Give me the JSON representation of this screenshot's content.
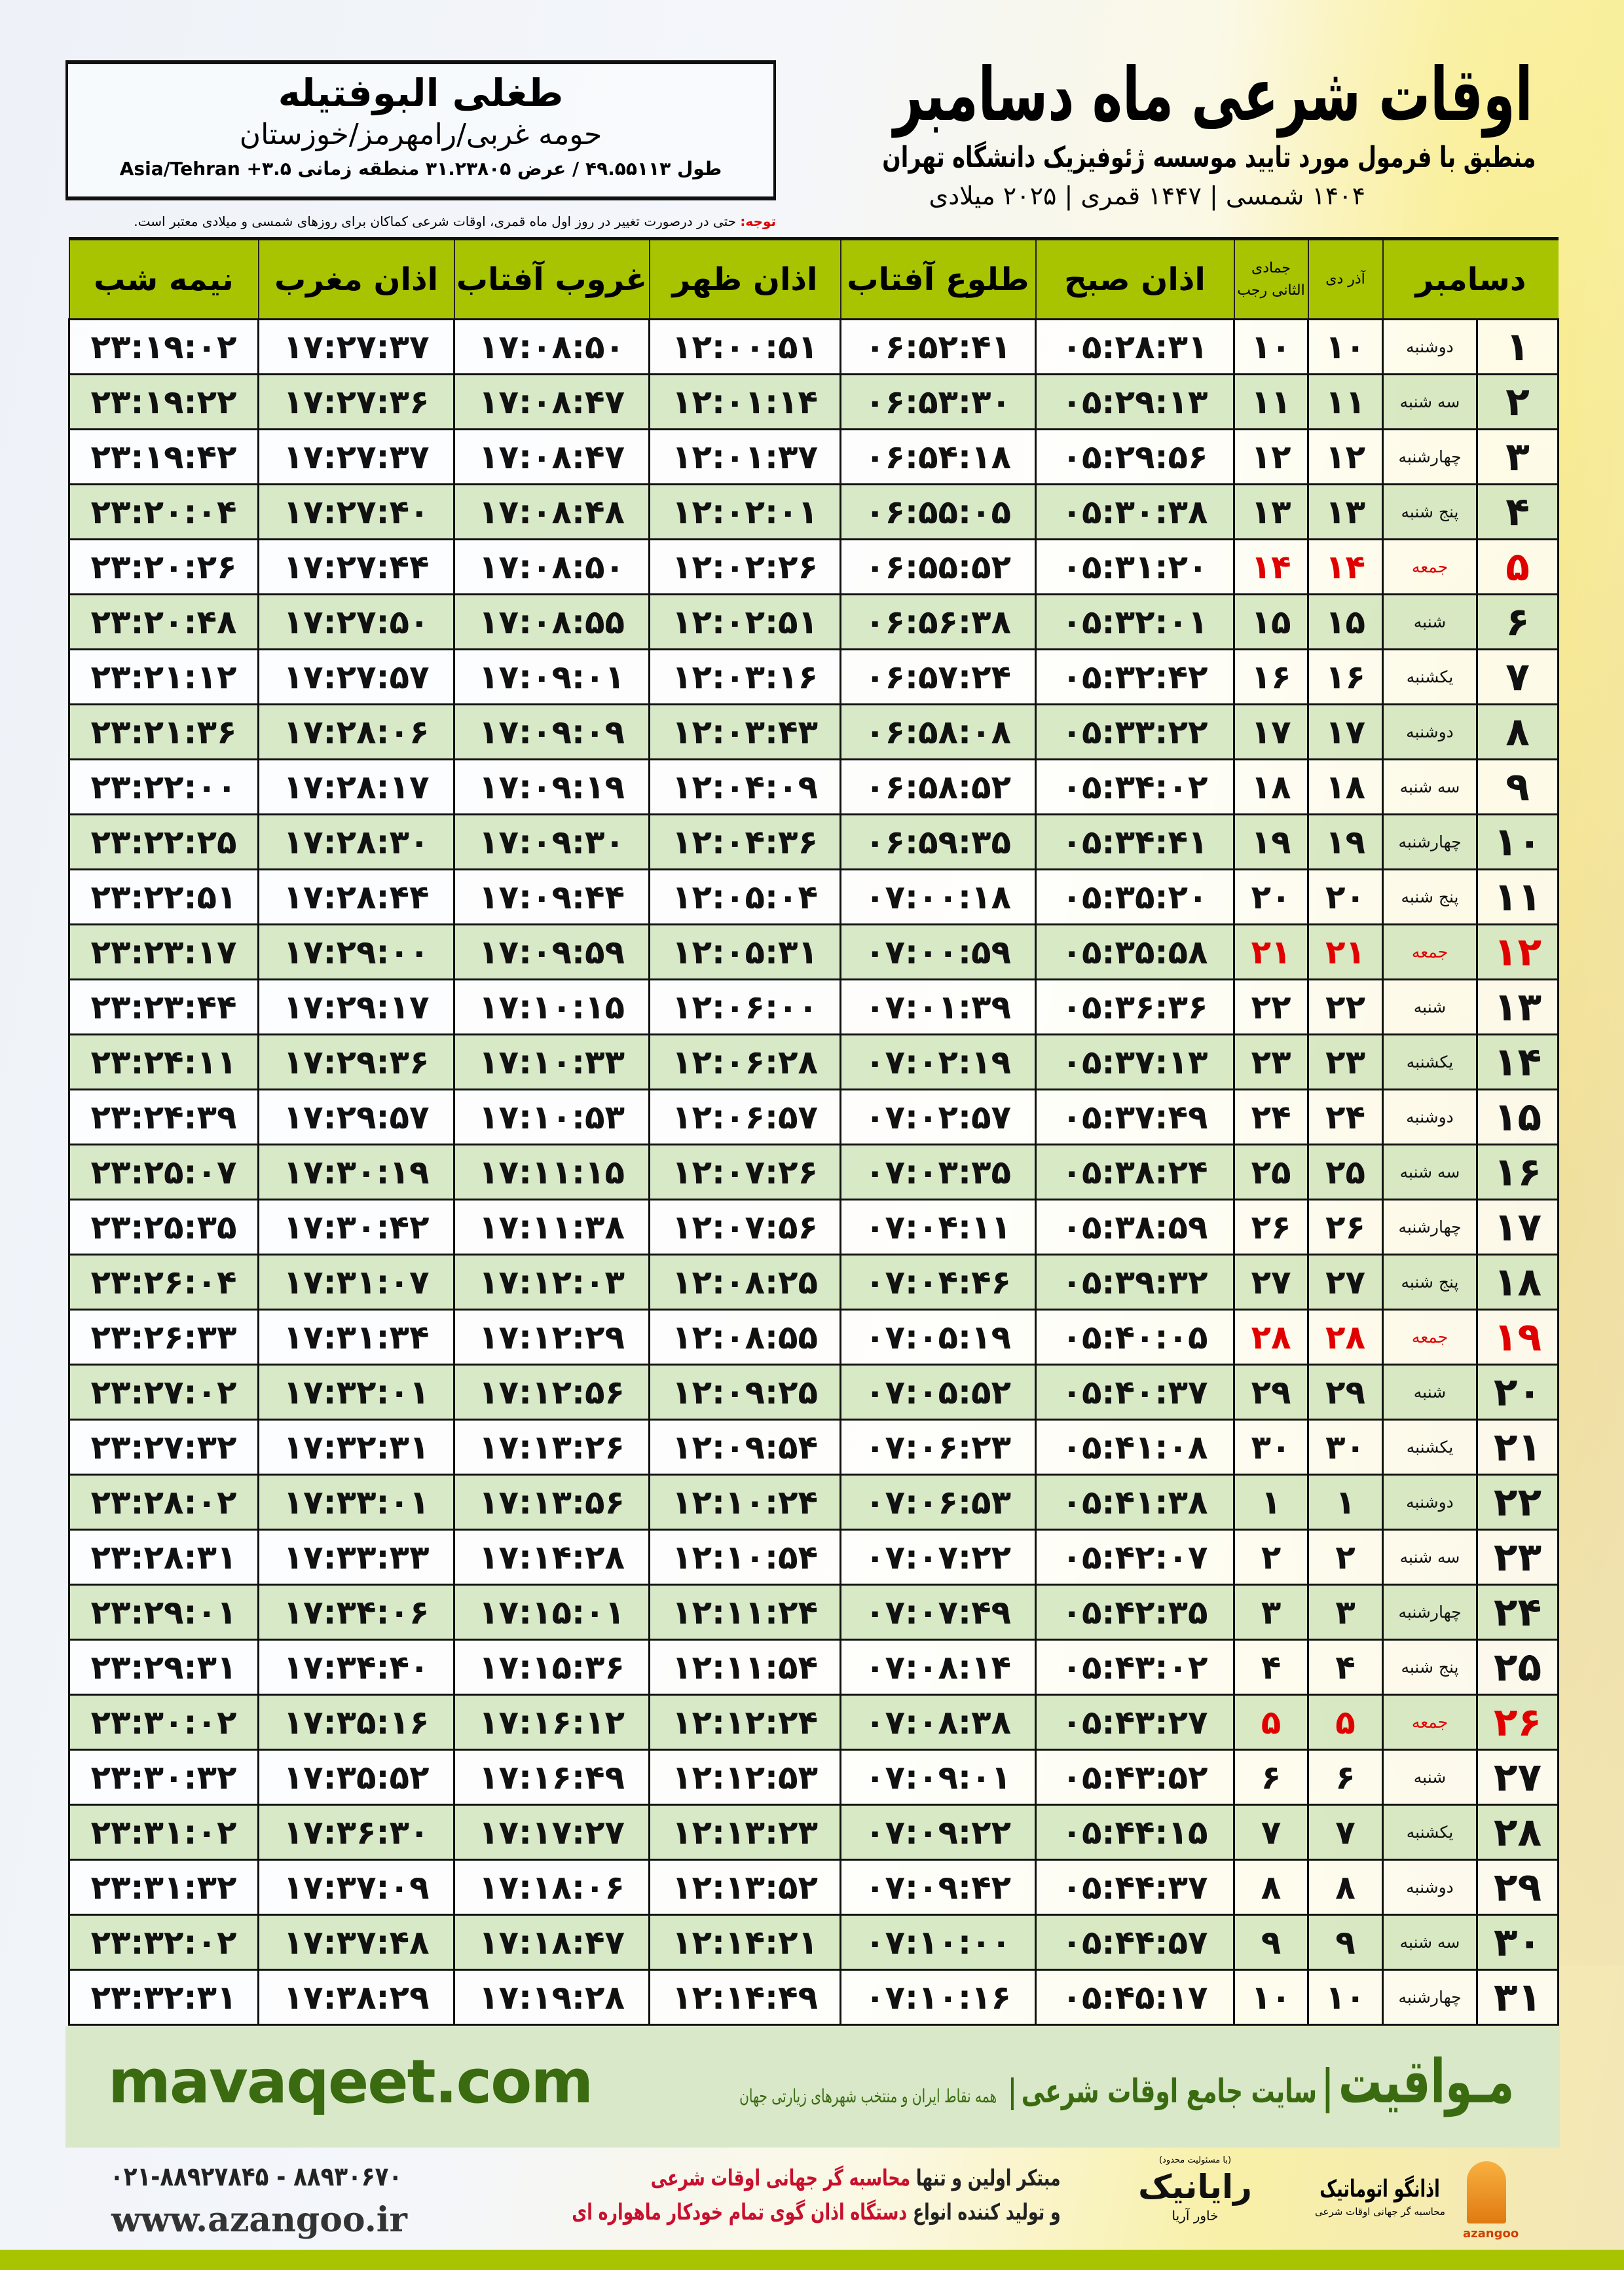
{
  "header": {
    "title": "اوقات شرعی ماه دسامبر",
    "subtitle": "منطبق با فرمول مورد تایید موسسه ژئوفیزیک دانشگاه تهران",
    "date_line": "۱۴۰۴ شمسی | ۱۴۴۷ قمری | ۲۰۲۵ میلادی"
  },
  "location": {
    "city": "طغلی البوفتیله",
    "region": "حومه غربی/رامهرمز/خوزستان",
    "coords": "طول ۴۹.۵۵۱۱۳ / عرض ۳۱.۲۳۸۰۵ منطقه زمانی Asia/Tehran +۳.۵"
  },
  "note": {
    "label": "توجه:",
    "text": " حتی در درصورت تغییر در روز اول ماه قمری، اوقات شرعی کماکان برای روزهای شمسی و میلادی معتبر است."
  },
  "table": {
    "headers": {
      "month": "دسامبر",
      "persian_months": "آذر  دی",
      "hijri_months": "جمادی الثانی  رجب",
      "sobh": "اذان صبح",
      "tolu": "طلوع آفتاب",
      "zohr": "اذان ظهر",
      "ghorub": "غروب آفتاب",
      "maghreb": "اذان مغرب",
      "nimeshab": "نیمه شب"
    },
    "rows": [
      [
        "۱",
        "دوشنبه",
        "۱۰",
        "۱۰",
        "۰۵:۲۸:۳۱",
        "۰۶:۵۲:۴۱",
        "۱۲:۰۰:۵۱",
        "۱۷:۰۸:۵۰",
        "۱۷:۲۷:۳۷",
        "۲۳:۱۹:۰۲"
      ],
      [
        "۲",
        "سه شنبه",
        "۱۱",
        "۱۱",
        "۰۵:۲۹:۱۳",
        "۰۶:۵۳:۳۰",
        "۱۲:۰۱:۱۴",
        "۱۷:۰۸:۴۷",
        "۱۷:۲۷:۳۶",
        "۲۳:۱۹:۲۲"
      ],
      [
        "۳",
        "چهارشنبه",
        "۱۲",
        "۱۲",
        "۰۵:۲۹:۵۶",
        "۰۶:۵۴:۱۸",
        "۱۲:۰۱:۳۷",
        "۱۷:۰۸:۴۷",
        "۱۷:۲۷:۳۷",
        "۲۳:۱۹:۴۲"
      ],
      [
        "۴",
        "پنج شنبه",
        "۱۳",
        "۱۳",
        "۰۵:۳۰:۳۸",
        "۰۶:۵۵:۰۵",
        "۱۲:۰۲:۰۱",
        "۱۷:۰۸:۴۸",
        "۱۷:۲۷:۴۰",
        "۲۳:۲۰:۰۴"
      ],
      [
        "۵",
        "جمعه",
        "۱۴",
        "۱۴",
        "۰۵:۳۱:۲۰",
        "۰۶:۵۵:۵۲",
        "۱۲:۰۲:۲۶",
        "۱۷:۰۸:۵۰",
        "۱۷:۲۷:۴۴",
        "۲۳:۲۰:۲۶"
      ],
      [
        "۶",
        "شنبه",
        "۱۵",
        "۱۵",
        "۰۵:۳۲:۰۱",
        "۰۶:۵۶:۳۸",
        "۱۲:۰۲:۵۱",
        "۱۷:۰۸:۵۵",
        "۱۷:۲۷:۵۰",
        "۲۳:۲۰:۴۸"
      ],
      [
        "۷",
        "یکشنبه",
        "۱۶",
        "۱۶",
        "۰۵:۳۲:۴۲",
        "۰۶:۵۷:۲۴",
        "۱۲:۰۳:۱۶",
        "۱۷:۰۹:۰۱",
        "۱۷:۲۷:۵۷",
        "۲۳:۲۱:۱۲"
      ],
      [
        "۸",
        "دوشنبه",
        "۱۷",
        "۱۷",
        "۰۵:۳۳:۲۲",
        "۰۶:۵۸:۰۸",
        "۱۲:۰۳:۴۳",
        "۱۷:۰۹:۰۹",
        "۱۷:۲۸:۰۶",
        "۲۳:۲۱:۳۶"
      ],
      [
        "۹",
        "سه شنبه",
        "۱۸",
        "۱۸",
        "۰۵:۳۴:۰۲",
        "۰۶:۵۸:۵۲",
        "۱۲:۰۴:۰۹",
        "۱۷:۰۹:۱۹",
        "۱۷:۲۸:۱۷",
        "۲۳:۲۲:۰۰"
      ],
      [
        "۱۰",
        "چهارشنبه",
        "۱۹",
        "۱۹",
        "۰۵:۳۴:۴۱",
        "۰۶:۵۹:۳۵",
        "۱۲:۰۴:۳۶",
        "۱۷:۰۹:۳۰",
        "۱۷:۲۸:۳۰",
        "۲۳:۲۲:۲۵"
      ],
      [
        "۱۱",
        "پنج شنبه",
        "۲۰",
        "۲۰",
        "۰۵:۳۵:۲۰",
        "۰۷:۰۰:۱۸",
        "۱۲:۰۵:۰۴",
        "۱۷:۰۹:۴۴",
        "۱۷:۲۸:۴۴",
        "۲۳:۲۲:۵۱"
      ],
      [
        "۱۲",
        "جمعه",
        "۲۱",
        "۲۱",
        "۰۵:۳۵:۵۸",
        "۰۷:۰۰:۵۹",
        "۱۲:۰۵:۳۱",
        "۱۷:۰۹:۵۹",
        "۱۷:۲۹:۰۰",
        "۲۳:۲۳:۱۷"
      ],
      [
        "۱۳",
        "شنبه",
        "۲۲",
        "۲۲",
        "۰۵:۳۶:۳۶",
        "۰۷:۰۱:۳۹",
        "۱۲:۰۶:۰۰",
        "۱۷:۱۰:۱۵",
        "۱۷:۲۹:۱۷",
        "۲۳:۲۳:۴۴"
      ],
      [
        "۱۴",
        "یکشنبه",
        "۲۳",
        "۲۳",
        "۰۵:۳۷:۱۳",
        "۰۷:۰۲:۱۹",
        "۱۲:۰۶:۲۸",
        "۱۷:۱۰:۳۳",
        "۱۷:۲۹:۳۶",
        "۲۳:۲۴:۱۱"
      ],
      [
        "۱۵",
        "دوشنبه",
        "۲۴",
        "۲۴",
        "۰۵:۳۷:۴۹",
        "۰۷:۰۲:۵۷",
        "۱۲:۰۶:۵۷",
        "۱۷:۱۰:۵۳",
        "۱۷:۲۹:۵۷",
        "۲۳:۲۴:۳۹"
      ],
      [
        "۱۶",
        "سه شنبه",
        "۲۵",
        "۲۵",
        "۰۵:۳۸:۲۴",
        "۰۷:۰۳:۳۵",
        "۱۲:۰۷:۲۶",
        "۱۷:۱۱:۱۵",
        "۱۷:۳۰:۱۹",
        "۲۳:۲۵:۰۷"
      ],
      [
        "۱۷",
        "چهارشنبه",
        "۲۶",
        "۲۶",
        "۰۵:۳۸:۵۹",
        "۰۷:۰۴:۱۱",
        "۱۲:۰۷:۵۶",
        "۱۷:۱۱:۳۸",
        "۱۷:۳۰:۴۲",
        "۲۳:۲۵:۳۵"
      ],
      [
        "۱۸",
        "پنج شنبه",
        "۲۷",
        "۲۷",
        "۰۵:۳۹:۳۲",
        "۰۷:۰۴:۴۶",
        "۱۲:۰۸:۲۵",
        "۱۷:۱۲:۰۳",
        "۱۷:۳۱:۰۷",
        "۲۳:۲۶:۰۴"
      ],
      [
        "۱۹",
        "جمعه",
        "۲۸",
        "۲۸",
        "۰۵:۴۰:۰۵",
        "۰۷:۰۵:۱۹",
        "۱۲:۰۸:۵۵",
        "۱۷:۱۲:۲۹",
        "۱۷:۳۱:۳۴",
        "۲۳:۲۶:۳۳"
      ],
      [
        "۲۰",
        "شنبه",
        "۲۹",
        "۲۹",
        "۰۵:۴۰:۳۷",
        "۰۷:۰۵:۵۲",
        "۱۲:۰۹:۲۵",
        "۱۷:۱۲:۵۶",
        "۱۷:۳۲:۰۱",
        "۲۳:۲۷:۰۲"
      ],
      [
        "۲۱",
        "یکشنبه",
        "۳۰",
        "۳۰",
        "۰۵:۴۱:۰۸",
        "۰۷:۰۶:۲۳",
        "۱۲:۰۹:۵۴",
        "۱۷:۱۳:۲۶",
        "۱۷:۳۲:۳۱",
        "۲۳:۲۷:۳۲"
      ],
      [
        "۲۲",
        "دوشنبه",
        "۱",
        "۱",
        "۰۵:۴۱:۳۸",
        "۰۷:۰۶:۵۳",
        "۱۲:۱۰:۲۴",
        "۱۷:۱۳:۵۶",
        "۱۷:۳۳:۰۱",
        "۲۳:۲۸:۰۲"
      ],
      [
        "۲۳",
        "سه شنبه",
        "۲",
        "۲",
        "۰۵:۴۲:۰۷",
        "۰۷:۰۷:۲۲",
        "۱۲:۱۰:۵۴",
        "۱۷:۱۴:۲۸",
        "۱۷:۳۳:۳۳",
        "۲۳:۲۸:۳۱"
      ],
      [
        "۲۴",
        "چهارشنبه",
        "۳",
        "۳",
        "۰۵:۴۲:۳۵",
        "۰۷:۰۷:۴۹",
        "۱۲:۱۱:۲۴",
        "۱۷:۱۵:۰۱",
        "۱۷:۳۴:۰۶",
        "۲۳:۲۹:۰۱"
      ],
      [
        "۲۵",
        "پنج شنبه",
        "۴",
        "۴",
        "۰۵:۴۳:۰۲",
        "۰۷:۰۸:۱۴",
        "۱۲:۱۱:۵۴",
        "۱۷:۱۵:۳۶",
        "۱۷:۳۴:۴۰",
        "۲۳:۲۹:۳۱"
      ],
      [
        "۲۶",
        "جمعه",
        "۵",
        "۵",
        "۰۵:۴۳:۲۷",
        "۰۷:۰۸:۳۸",
        "۱۲:۱۲:۲۴",
        "۱۷:۱۶:۱۲",
        "۱۷:۳۵:۱۶",
        "۲۳:۳۰:۰۲"
      ],
      [
        "۲۷",
        "شنبه",
        "۶",
        "۶",
        "۰۵:۴۳:۵۲",
        "۰۷:۰۹:۰۱",
        "۱۲:۱۲:۵۳",
        "۱۷:۱۶:۴۹",
        "۱۷:۳۵:۵۲",
        "۲۳:۳۰:۳۲"
      ],
      [
        "۲۸",
        "یکشنبه",
        "۷",
        "۷",
        "۰۵:۴۴:۱۵",
        "۰۷:۰۹:۲۲",
        "۱۲:۱۳:۲۳",
        "۱۷:۱۷:۲۷",
        "۱۷:۳۶:۳۰",
        "۲۳:۳۱:۰۲"
      ],
      [
        "۲۹",
        "دوشنبه",
        "۸",
        "۸",
        "۰۵:۴۴:۳۷",
        "۰۷:۰۹:۴۲",
        "۱۲:۱۳:۵۲",
        "۱۷:۱۸:۰۶",
        "۱۷:۳۷:۰۹",
        "۲۳:۳۱:۳۲"
      ],
      [
        "۳۰",
        "سه شنبه",
        "۹",
        "۹",
        "۰۵:۴۴:۵۷",
        "۰۷:۱۰:۰۰",
        "۱۲:۱۴:۲۱",
        "۱۷:۱۸:۴۷",
        "۱۷:۳۷:۴۸",
        "۲۳:۳۲:۰۲"
      ],
      [
        "۳۱",
        "چهارشنبه",
        "۱۰",
        "۱۰",
        "۰۵:۴۵:۱۷",
        "۰۷:۱۰:۱۶",
        "۱۲:۱۴:۴۹",
        "۱۷:۱۹:۲۸",
        "۱۷:۳۸:۲۹",
        "۲۳:۳۲:۳۱"
      ]
    ],
    "holiday_weekday": "جمعه",
    "colors": {
      "header": "#a8c400",
      "alt_row": "#d6e8c4",
      "holiday": "#e00000"
    }
  },
  "footer": {
    "site_url": "mavaqeet.com",
    "brand": "مـواقیت",
    "tagline": "سایت جامع اوقات شرعی",
    "tagline_sub": "همه نقاط ایران و منتخب شهرهای زیارتی جهان",
    "phones": "۰۲۱-۸۸۹۲۷۸۴۵ - ۸۸۹۳۰۶۷۰",
    "website": "www.azangoo.ir",
    "promo_1a": "مبتکر اولین و تنها ",
    "promo_1b": "محاسبه گر جهانی اوقات شرعی",
    "promo_2a": "و تولید کننده انواع ",
    "promo_2b": "دستگاه اذان گوی تمام خودکار ماهواره ای",
    "logo_rayanik": "رایانیک",
    "logo_rayanik_sub": "خاور آریا",
    "logo_rayanik_tiny": "(با مسئولیت محدود)",
    "logo_azangoo": "اذانگو اتوماتیک",
    "logo_azangoo_sub": "محاسبه گر جهانی اوقات شرعی",
    "logo_azangoo_en": "azangoo"
  }
}
